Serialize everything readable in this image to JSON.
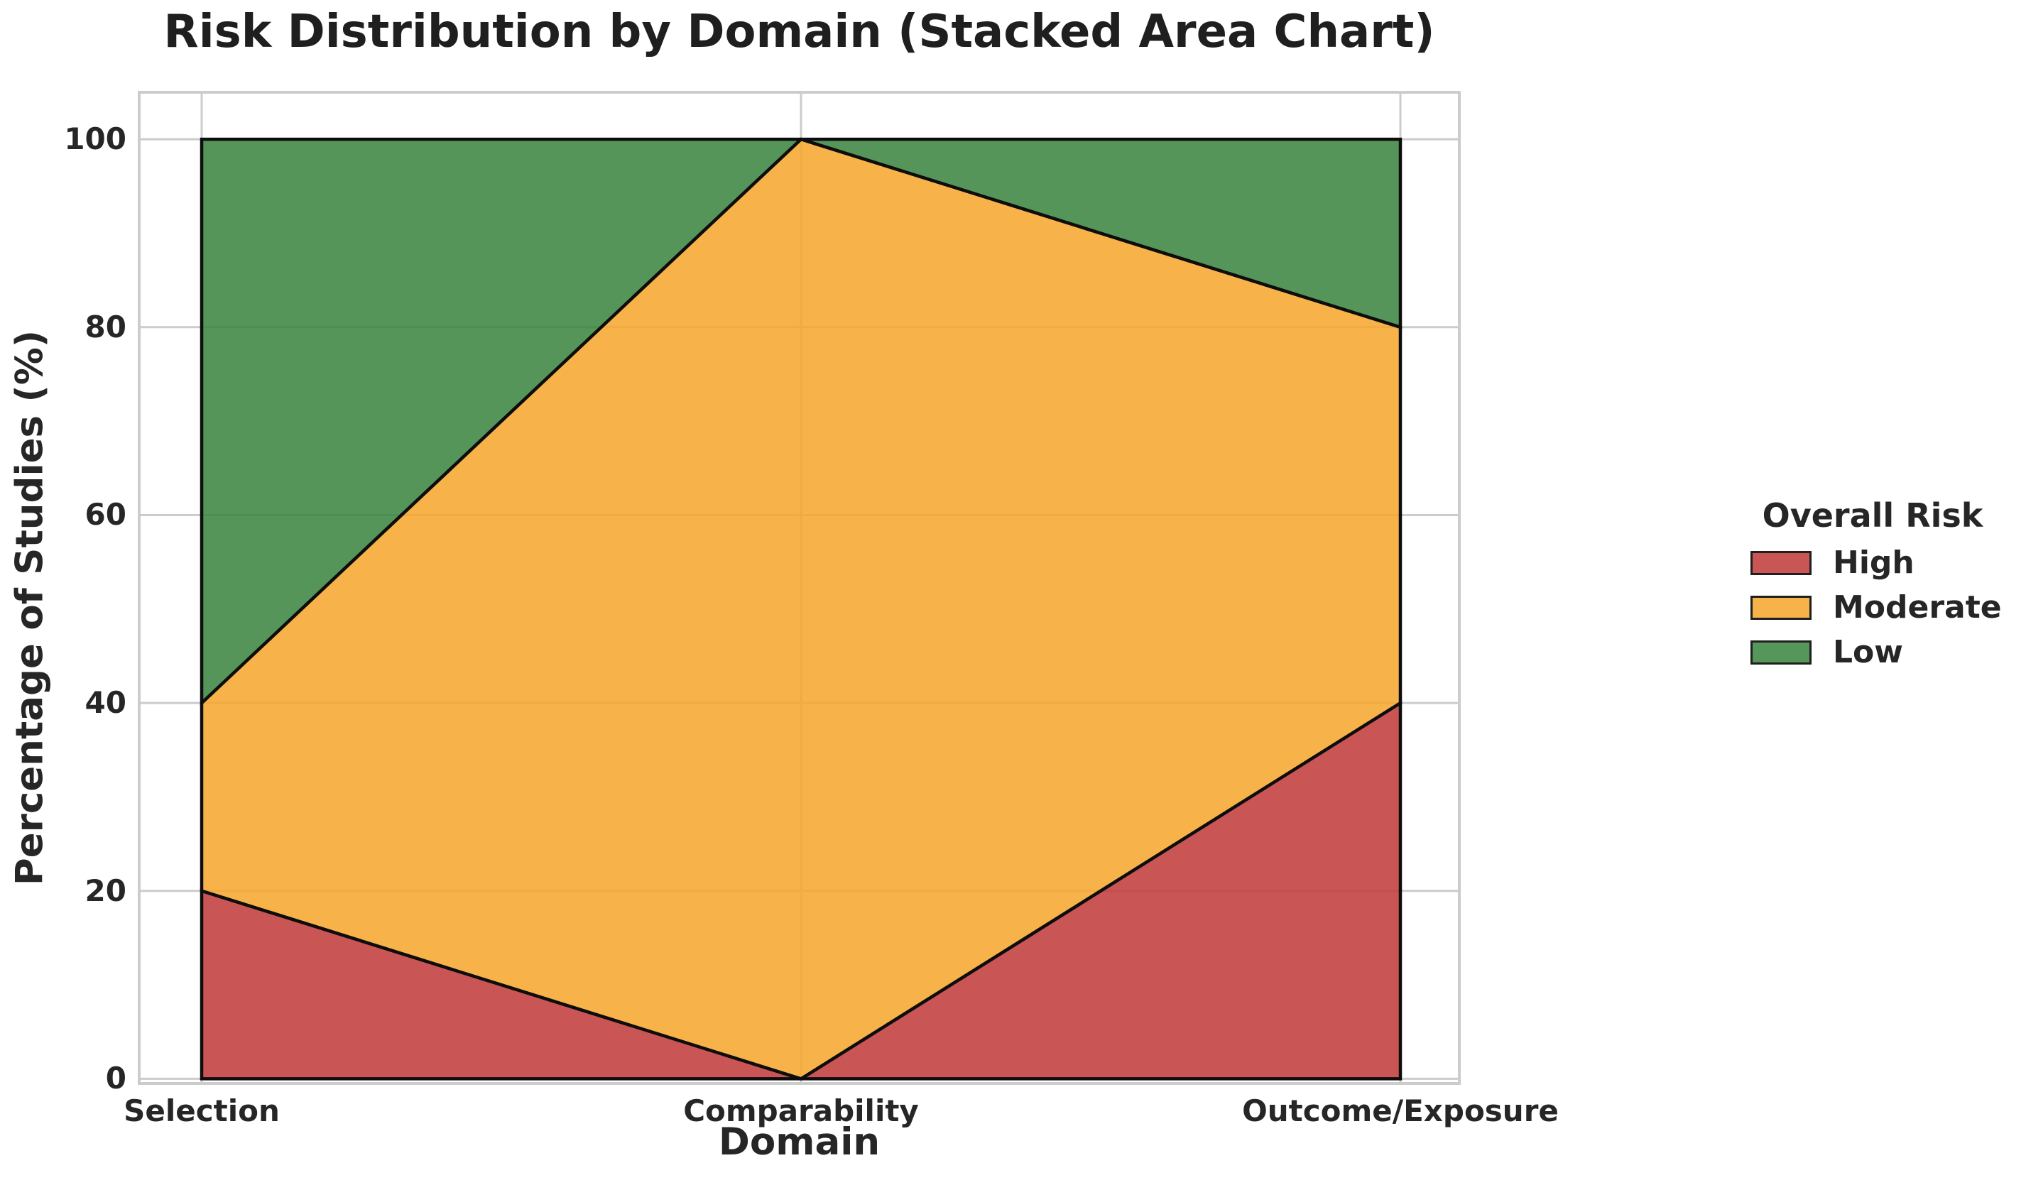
{
  "chart": {
    "title": "Risk Distribution by Domain (Stacked Area Chart)",
    "xlabel": "Domain",
    "ylabel": "Percentage of Studies (%)"
  },
  "legend": {
    "title": "Overall Risk",
    "items": [
      {
        "label": "High",
        "color": "#c95555"
      },
      {
        "label": "Moderate",
        "color": "#f7b24a"
      },
      {
        "label": "Low",
        "color": "#55965a"
      }
    ]
  },
  "chart_data": {
    "type": "area",
    "stacked": true,
    "title": "Risk Distribution by Domain (Stacked Area Chart)",
    "xlabel": "Domain",
    "ylabel": "Percentage of Studies (%)",
    "categories": [
      "Selection",
      "Comparability",
      "Outcome/Exposure"
    ],
    "series": [
      {
        "name": "High",
        "values": [
          20,
          0,
          40
        ],
        "color": "#c95555"
      },
      {
        "name": "Moderate",
        "values": [
          20,
          100,
          40
        ],
        "color": "#f7b24a"
      },
      {
        "name": "Low",
        "values": [
          60,
          0,
          20
        ],
        "color": "#55965a"
      }
    ],
    "stack_totals": [
      100,
      100,
      100
    ],
    "ylim": [
      0,
      105
    ],
    "yticks": [
      0,
      20,
      40,
      60,
      80,
      100
    ],
    "grid": true,
    "grid_color": "#cccccc",
    "edge_color": "#0d0d0d",
    "legend_position": "right-outside"
  }
}
